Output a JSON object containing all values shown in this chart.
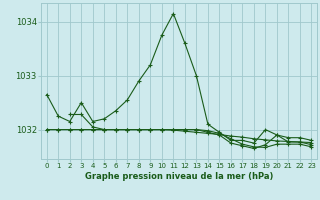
{
  "title": "Graphe pression niveau de la mer (hPa)",
  "background_color": "#ceeaed",
  "grid_color": "#a0c8cc",
  "line_color": "#1a5c1a",
  "xlim": [
    -0.5,
    23.5
  ],
  "ylim": [
    1031.45,
    1034.35
  ],
  "yticks": [
    1032,
    1033,
    1034
  ],
  "xticks": [
    0,
    1,
    2,
    3,
    4,
    5,
    6,
    7,
    8,
    9,
    10,
    11,
    12,
    13,
    14,
    15,
    16,
    17,
    18,
    19,
    20,
    21,
    22,
    23
  ],
  "series": [
    {
      "x": [
        0,
        1,
        2,
        3,
        4,
        5,
        6,
        7,
        8,
        9,
        10,
        11,
        12,
        13,
        14,
        15,
        16,
        17,
        18,
        19,
        20,
        21,
        22,
        23
      ],
      "y": [
        1032.65,
        1032.25,
        1032.15,
        1032.5,
        1032.15,
        1032.2,
        1032.35,
        1032.55,
        1032.9,
        1033.2,
        1033.75,
        1034.15,
        1033.6,
        1033.0,
        1032.1,
        1031.95,
        1031.8,
        1031.8,
        1031.75,
        1032.0,
        1031.9,
        1031.85,
        1031.85,
        1031.8
      ]
    },
    {
      "x": [
        0,
        1,
        2,
        3,
        4,
        5,
        6,
        7,
        8,
        9,
        10,
        11,
        12,
        13,
        14,
        15,
        16,
        17,
        18,
        19,
        20,
        21,
        22,
        23
      ],
      "y": [
        1032.0,
        1032.0,
        1032.0,
        1032.0,
        1032.0,
        1032.0,
        1032.0,
        1032.0,
        1032.0,
        1032.0,
        1032.0,
        1032.0,
        1032.0,
        1032.0,
        1031.95,
        1031.9,
        1031.75,
        1031.7,
        1031.65,
        1031.72,
        1031.9,
        1031.77,
        1031.77,
        1031.72
      ]
    },
    {
      "x": [
        2,
        3,
        4,
        5,
        6,
        7,
        8,
        9,
        10,
        11,
        12,
        13,
        14,
        15,
        16,
        17,
        18,
        19,
        20,
        21,
        22,
        23
      ],
      "y": [
        1032.28,
        1032.28,
        1032.05,
        1032.0,
        1032.0,
        1032.0,
        1032.0,
        1032.0,
        1032.0,
        1032.0,
        1032.0,
        1032.0,
        1031.98,
        1031.93,
        1031.83,
        1031.73,
        1031.68,
        1031.67,
        1031.73,
        1031.73,
        1031.73,
        1031.68
      ]
    },
    {
      "x": [
        0,
        1,
        2,
        3,
        4,
        5,
        6,
        7,
        8,
        9,
        10,
        11,
        12,
        13,
        14,
        15,
        16,
        17,
        18,
        19,
        20,
        21,
        22,
        23
      ],
      "y": [
        1032.0,
        1032.0,
        1032.0,
        1032.0,
        1032.0,
        1032.0,
        1032.0,
        1032.0,
        1032.0,
        1032.0,
        1032.0,
        1031.99,
        1031.97,
        1031.95,
        1031.93,
        1031.91,
        1031.88,
        1031.86,
        1031.83,
        1031.81,
        1031.79,
        1031.78,
        1031.77,
        1031.76
      ]
    }
  ]
}
